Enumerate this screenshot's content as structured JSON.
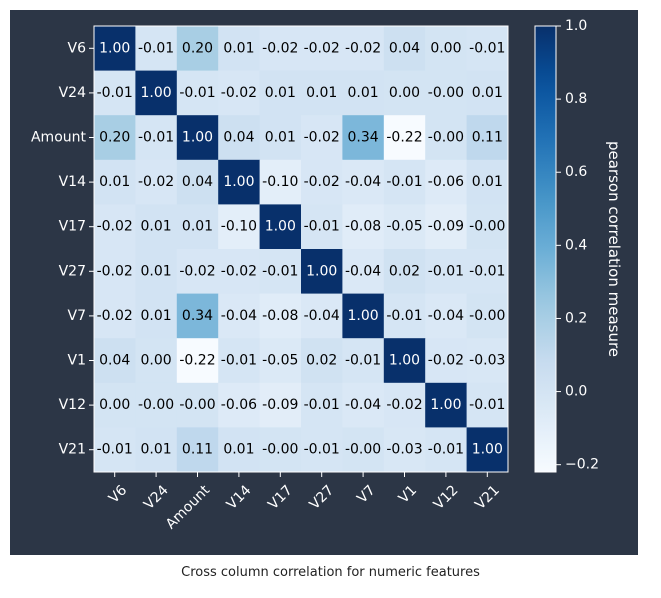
{
  "chart_data": {
    "type": "heatmap",
    "caption": "Cross column correlation for numeric features",
    "x_labels": [
      "V6",
      "V24",
      "Amount",
      "V14",
      "V17",
      "V27",
      "V7",
      "V1",
      "V12",
      "V21"
    ],
    "y_labels": [
      "V6",
      "V24",
      "Amount",
      "V14",
      "V17",
      "V27",
      "V7",
      "V1",
      "V12",
      "V21"
    ],
    "values": [
      [
        "1.00",
        "-0.01",
        "0.20",
        "0.01",
        "-0.02",
        "-0.02",
        "-0.02",
        "0.04",
        "0.00",
        "-0.01"
      ],
      [
        "-0.01",
        "1.00",
        "-0.01",
        "-0.02",
        "0.01",
        "0.01",
        "0.01",
        "0.00",
        "-0.00",
        "0.01"
      ],
      [
        "0.20",
        "-0.01",
        "1.00",
        "0.04",
        "0.01",
        "-0.02",
        "0.34",
        "-0.22",
        "-0.00",
        "0.11"
      ],
      [
        "0.01",
        "-0.02",
        "0.04",
        "1.00",
        "-0.10",
        "-0.02",
        "-0.04",
        "-0.01",
        "-0.06",
        "0.01"
      ],
      [
        "-0.02",
        "0.01",
        "0.01",
        "-0.10",
        "1.00",
        "-0.01",
        "-0.08",
        "-0.05",
        "-0.09",
        "-0.00"
      ],
      [
        "-0.02",
        "0.01",
        "-0.02",
        "-0.02",
        "-0.01",
        "1.00",
        "-0.04",
        "0.02",
        "-0.01",
        "-0.01"
      ],
      [
        "-0.02",
        "0.01",
        "0.34",
        "-0.04",
        "-0.08",
        "-0.04",
        "1.00",
        "-0.01",
        "-0.04",
        "-0.00"
      ],
      [
        "0.04",
        "0.00",
        "-0.22",
        "-0.01",
        "-0.05",
        "0.02",
        "-0.01",
        "1.00",
        "-0.02",
        "-0.03"
      ],
      [
        "0.00",
        "-0.00",
        "-0.00",
        "-0.06",
        "-0.09",
        "-0.01",
        "-0.04",
        "-0.02",
        "1.00",
        "-0.01"
      ],
      [
        "-0.01",
        "0.01",
        "0.11",
        "0.01",
        "-0.00",
        "-0.01",
        "-0.00",
        "-0.03",
        "-0.01",
        "1.00"
      ]
    ],
    "colorbar": {
      "label": "pearson correlation measure",
      "vmin": -0.22,
      "vmax": 1.0,
      "ticks": [
        "−0.2",
        "0.0",
        "0.2",
        "0.4",
        "0.6",
        "0.8",
        "1.0"
      ],
      "tick_values": [
        -0.2,
        0.0,
        0.2,
        0.4,
        0.6,
        0.8,
        1.0
      ]
    },
    "colormap": "Blues",
    "colors": {
      "background": "#2c3646",
      "text_light": "#ffffff",
      "text_dark": "#000000"
    }
  }
}
